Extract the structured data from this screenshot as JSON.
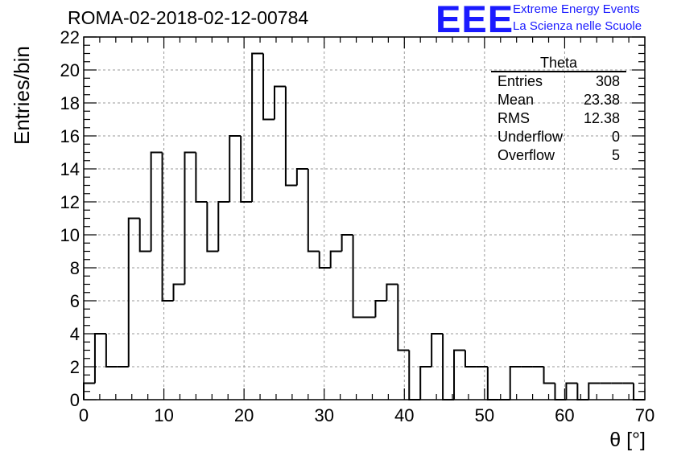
{
  "chart_data": {
    "type": "bar",
    "title": "ROMA-02-2018-02-12-00784",
    "xlabel": "θ [°]",
    "ylabel": "Entries/bin",
    "xlim": [
      0,
      70
    ],
    "ylim": [
      0,
      22
    ],
    "x_ticks": [
      0,
      10,
      20,
      30,
      40,
      50,
      60,
      70
    ],
    "y_ticks": [
      0,
      2,
      4,
      6,
      8,
      10,
      12,
      14,
      16,
      18,
      20,
      22
    ],
    "grid": true,
    "bin_width": 1.4,
    "bin_start": 0,
    "values": [
      1,
      4,
      2,
      2,
      11,
      9,
      15,
      6,
      7,
      15,
      12,
      9,
      12,
      16,
      12,
      21,
      17,
      19,
      13,
      14,
      9,
      8,
      9,
      10,
      5,
      5,
      6,
      7,
      3,
      0,
      2,
      4,
      0,
      3,
      2,
      2,
      0,
      0,
      2,
      2,
      2,
      1,
      0,
      1,
      0,
      1,
      1,
      1,
      1,
      0
    ],
    "line_color": "#000000"
  },
  "stats_box": {
    "title": "Theta",
    "rows": [
      {
        "label": "Entries",
        "value": "308"
      },
      {
        "label": "Mean",
        "value": "23.38"
      },
      {
        "label": "RMS",
        "value": "12.38"
      },
      {
        "label": "Underflow",
        "value": "0"
      },
      {
        "label": "Overflow",
        "value": "5"
      }
    ]
  },
  "logo": {
    "text": "EEE",
    "line1": "Extreme Energy Events",
    "line2": "La Scienza nelle Scuole",
    "color": "#1a1aff"
  }
}
